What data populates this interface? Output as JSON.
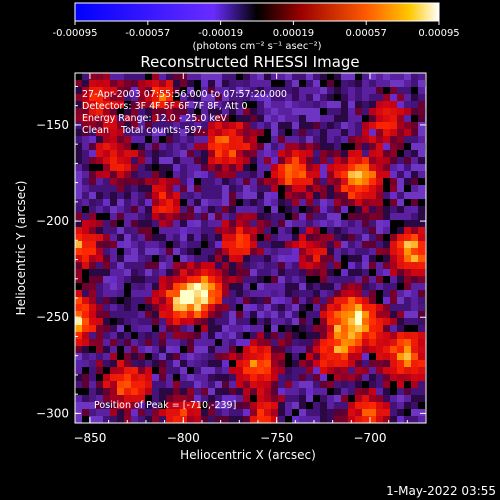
{
  "colorbar": {
    "ticks": [
      "-0.00095",
      "-0.00057",
      "-0.00019",
      "0.00019",
      "0.00057",
      "0.00095"
    ],
    "units_label": "(photons cm⁻² s⁻¹ asec⁻²)"
  },
  "title": "Reconstructed RHESSI Image",
  "annotations": [
    "27-Apr-2003 07:55:56.000 to 07:57:20.000",
    "Detectors: 3F 4F 5F 6F 7F 8F, Att 0",
    "Energy Range: 12.0 - 25.0 keV",
    "Clean    Total counts: 597."
  ],
  "peak_label": "Position of Peak = [-710,-239]",
  "timestamp": "1-May-2022 03:55",
  "chart_data": {
    "type": "heatmap",
    "title": "Reconstructed RHESSI Image",
    "xlabel": "Heliocentric X (arcsec)",
    "ylabel": "Heliocentric Y (arcsec)",
    "xlim": [
      -858,
      -670
    ],
    "ylim": [
      -305,
      -123
    ],
    "xticks": [
      -850,
      -800,
      -750,
      -700
    ],
    "yticks": [
      -150,
      -200,
      -250,
      -300
    ],
    "colormap": "rhessi-signed",
    "color_range": [
      -0.00095,
      0.00095
    ],
    "peak": [
      -710,
      -239
    ],
    "blobs": [
      {
        "x": -708,
        "y": -252,
        "amp": 1.0,
        "r": 10
      },
      {
        "x": -706,
        "y": -178,
        "amp": 0.85,
        "r": 9
      },
      {
        "x": -858,
        "y": -250,
        "amp": 0.9,
        "r": 9
      },
      {
        "x": -678,
        "y": -216,
        "amp": 0.85,
        "r": 8
      },
      {
        "x": -800,
        "y": -242,
        "amp": 0.85,
        "r": 9
      },
      {
        "x": -787,
        "y": -235,
        "amp": 0.75,
        "r": 8
      },
      {
        "x": -855,
        "y": -213,
        "amp": 0.75,
        "r": 8
      },
      {
        "x": -835,
        "y": -166,
        "amp": 0.5,
        "r": 9
      },
      {
        "x": -776,
        "y": -160,
        "amp": 0.7,
        "r": 9
      },
      {
        "x": -740,
        "y": -175,
        "amp": 0.7,
        "r": 8
      },
      {
        "x": -770,
        "y": -210,
        "amp": 0.55,
        "r": 8
      },
      {
        "x": -830,
        "y": -285,
        "amp": 0.65,
        "r": 9
      },
      {
        "x": -760,
        "y": -275,
        "amp": 0.7,
        "r": 9
      },
      {
        "x": -720,
        "y": -270,
        "amp": 0.6,
        "r": 8
      },
      {
        "x": -680,
        "y": -270,
        "amp": 0.75,
        "r": 9
      },
      {
        "x": -845,
        "y": -138,
        "amp": 0.6,
        "r": 8
      },
      {
        "x": -690,
        "y": -150,
        "amp": 0.55,
        "r": 8
      },
      {
        "x": -810,
        "y": -190,
        "amp": 0.5,
        "r": 8
      },
      {
        "x": -730,
        "y": -215,
        "amp": 0.45,
        "r": 8
      },
      {
        "x": -800,
        "y": -300,
        "amp": 0.55,
        "r": 8
      },
      {
        "x": -700,
        "y": -300,
        "amp": 0.6,
        "r": 8
      },
      {
        "x": -812,
        "y": -135,
        "amp": 0.6,
        "r": 7
      },
      {
        "x": -757,
        "y": -302,
        "amp": 0.5,
        "r": 7
      }
    ]
  }
}
